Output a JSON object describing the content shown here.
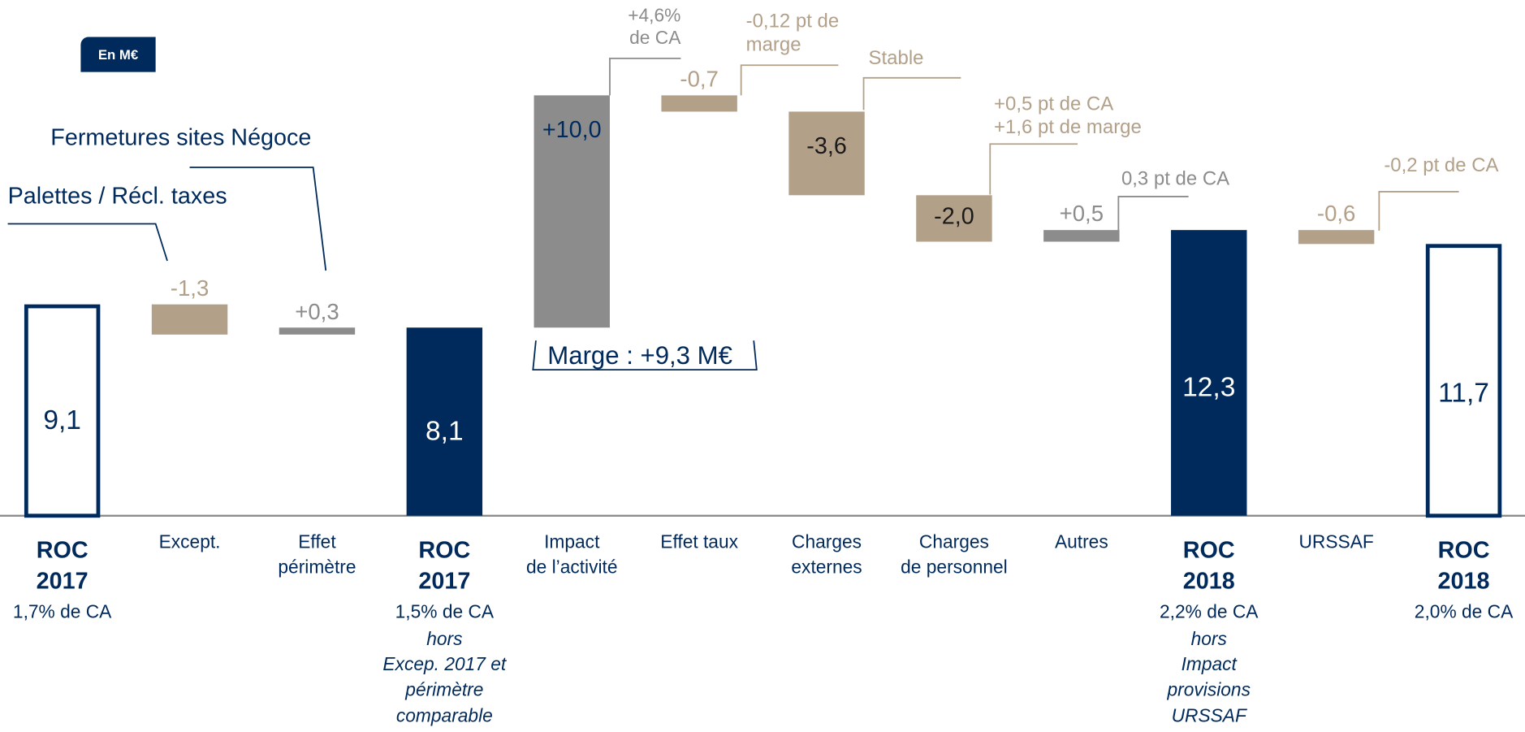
{
  "chart_data": {
    "type": "waterfall",
    "unit_label": "En M€",
    "categories": [
      "ROC\n2017",
      "Except.",
      "Effet\npérimètre",
      "ROC\n2017",
      "Impact\nde l’activité",
      "Effet taux",
      "Charges\nexternes",
      "Charges\nde personnel",
      "Autres",
      "ROC\n2018",
      "URSSAF",
      "ROC\n2018"
    ],
    "notes": [
      "1,7% de CA",
      null,
      null,
      "1,5% de CA",
      null,
      null,
      null,
      null,
      null,
      "2,2% de CA",
      null,
      "2,0% de CA"
    ],
    "italic_notes": [
      null,
      null,
      null,
      "hors\nExcep. 2017 et\npérimètre\ncomparable",
      null,
      null,
      null,
      null,
      null,
      "hors\nImpact\nprovisions\nURSSAF",
      null,
      null
    ],
    "measure": [
      "absolute",
      "relative",
      "relative",
      "absolute",
      "relative",
      "relative",
      "relative",
      "relative",
      "relative",
      "absolute",
      "relative",
      "absolute"
    ],
    "values": [
      9.1,
      -1.3,
      0.3,
      8.1,
      10.0,
      -0.7,
      -3.6,
      -2.0,
      0.5,
      12.3,
      -0.6,
      11.7
    ],
    "value_labels": [
      "9,1",
      "-1,3",
      "+0,3",
      "8,1",
      "+10,0",
      "-0,7",
      "-3,6",
      "-2,0",
      "+0,5",
      "12,3",
      "-0,6",
      "11,7"
    ],
    "filled": [
      false,
      true,
      true,
      true,
      true,
      true,
      true,
      true,
      true,
      true,
      true,
      false
    ],
    "colors": [
      "#002a5c",
      "#b3a089",
      "#8c8c8c",
      "#002a5c",
      "#8c8c8c",
      "#b3a089",
      "#b3a089",
      "#b3a089",
      "#8c8c8c",
      "#002a5c",
      "#b3a089",
      "#002a5c"
    ],
    "annotations": [
      {
        "text": "Palettes / Récl. taxes",
        "color": "#002a5c"
      },
      {
        "text": "Fermetures sites Négoce",
        "color": "#002a5c"
      },
      {
        "text": "+4,6%\nde CA",
        "color": "#8c8c8c"
      },
      {
        "text": "-0,12 pt de\nmarge",
        "color": "#b3a089"
      },
      {
        "text": "Stable",
        "color": "#b3a089"
      },
      {
        "text": "+0,5 pt de CA\n+1,6 pt de marge",
        "color": "#b3a089"
      },
      {
        "text": "0,3 pt de CA",
        "color": "#8c8c8c"
      },
      {
        "text": "-0,2 pt de CA",
        "color": "#b3a089"
      },
      {
        "text": "Marge : +9,3 M€",
        "color": "#002a5c"
      }
    ]
  }
}
